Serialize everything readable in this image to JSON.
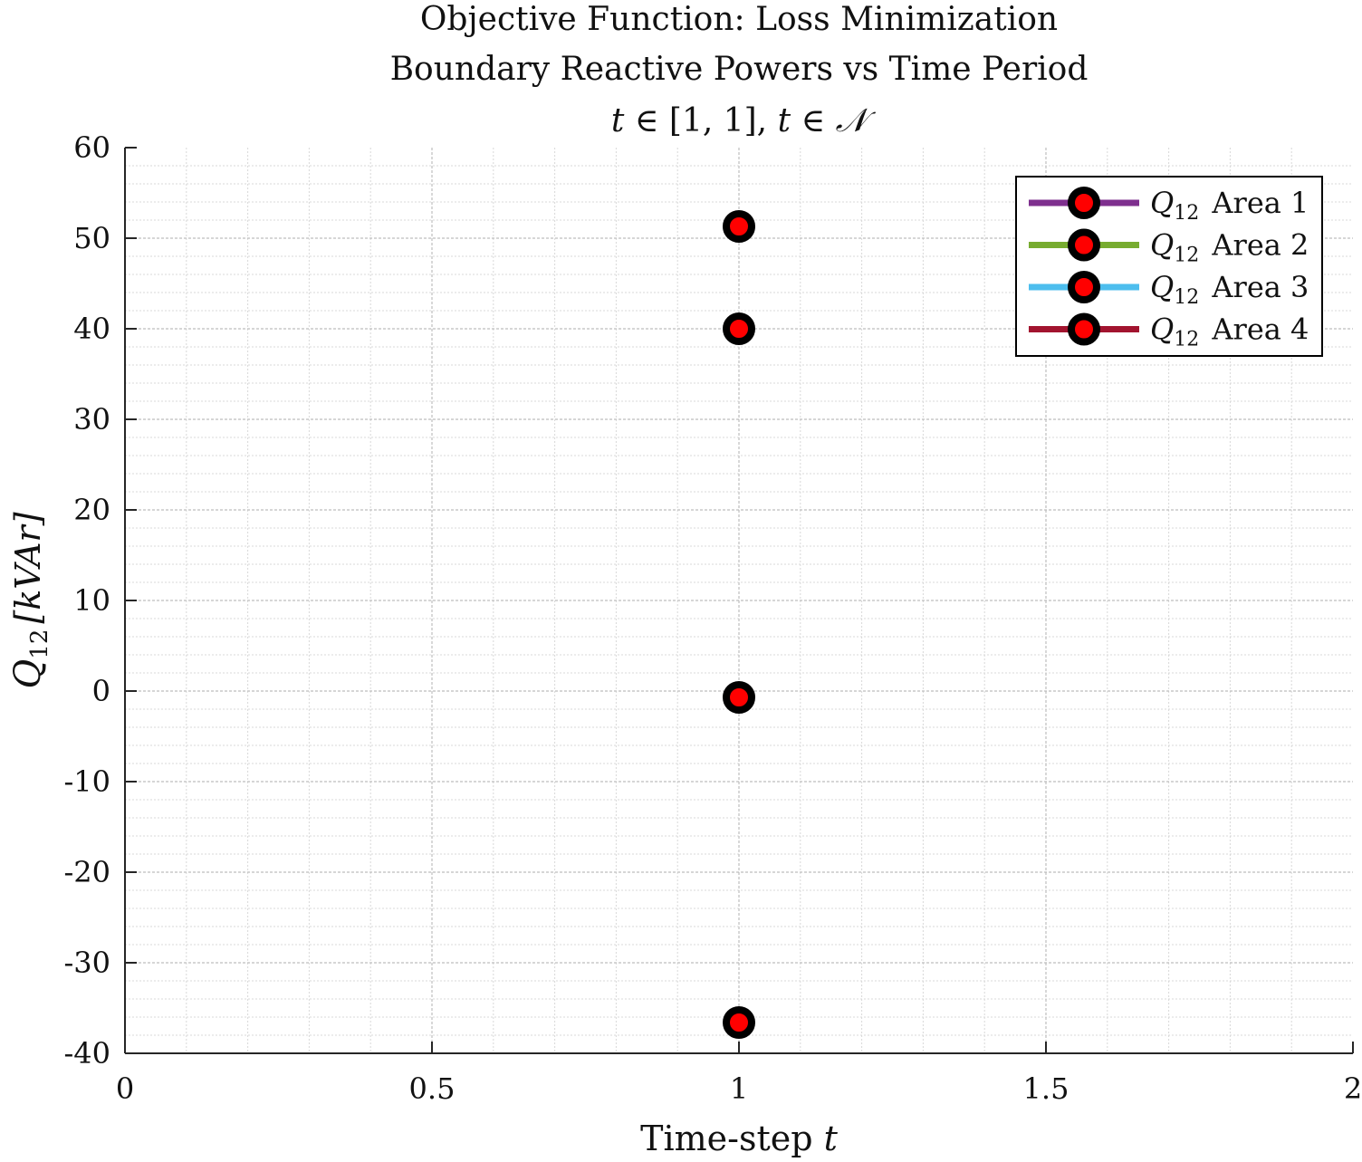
{
  "chart_data": {
    "type": "line",
    "title": {
      "line1": "Objective Function: Loss Minimization",
      "line2": "Boundary Reactive Powers vs Time Period",
      "line3_t": "t",
      "line3_in1": " ∈ [1, 1], ",
      "line3_t2": "t",
      "line3_in2": " ∈ ",
      "line3_set": "𝒩"
    },
    "xlabel": {
      "text": "Time-step ",
      "var": "t"
    },
    "ylabel": {
      "var": "Q",
      "sub": "12",
      "unit": "[kVAr]"
    },
    "xlim": [
      0,
      2
    ],
    "ylim": [
      -40,
      60
    ],
    "xticks": [
      0,
      0.5,
      1,
      1.5,
      2
    ],
    "xtick_labels": [
      "0",
      "0.5",
      "1",
      "1.5",
      "2"
    ],
    "yticks": [
      -40,
      -30,
      -20,
      -10,
      0,
      10,
      20,
      30,
      40,
      50,
      60
    ],
    "ytick_labels": [
      "-40",
      "-30",
      "-20",
      "-10",
      "0",
      "10",
      "20",
      "30",
      "40",
      "50",
      "60"
    ],
    "grid": true,
    "minor_grid": true,
    "legend_position": "top-right",
    "series": [
      {
        "name_var": "Q",
        "name_sub": "12",
        "name_text": " Area 1",
        "color": "#7E2F8E",
        "x": [
          1
        ],
        "y": [
          51.3
        ]
      },
      {
        "name_var": "Q",
        "name_sub": "12",
        "name_text": " Area 2",
        "color": "#77AC30",
        "x": [
          1
        ],
        "y": [
          40
        ]
      },
      {
        "name_var": "Q",
        "name_sub": "12",
        "name_text": " Area 3",
        "color": "#4DBEEE",
        "x": [
          1
        ],
        "y": [
          -0.7
        ]
      },
      {
        "name_var": "Q",
        "name_sub": "12",
        "name_text": " Area 4",
        "color": "#A2142F",
        "x": [
          1
        ],
        "y": [
          -36.6
        ]
      }
    ],
    "marker": {
      "shape": "circle",
      "edge_color": "#000000",
      "face_color": "#FF0000"
    }
  }
}
